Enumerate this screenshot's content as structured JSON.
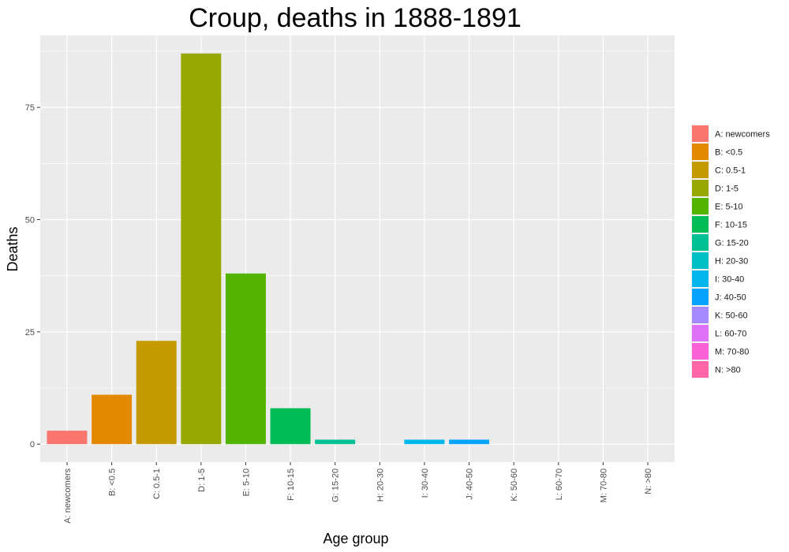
{
  "chart_data": {
    "type": "bar",
    "title": "Croup, deaths in 1888-1891",
    "xlabel": "Age group",
    "ylabel": "Deaths",
    "categories": [
      "A: newcomers",
      "B: <0.5",
      "C: 0.5-1",
      "D: 1-5",
      "E: 5-10",
      "F: 10-15",
      "G: 15-20",
      "H: 20-30",
      "I: 30-40",
      "J: 40-50",
      "K: 50-60",
      "L: 60-70",
      "M: 70-80",
      "N: >80"
    ],
    "values": [
      3,
      11,
      23,
      87,
      38,
      8,
      1,
      0,
      1,
      1,
      0,
      0,
      0,
      0
    ],
    "colors": [
      "#F8766D",
      "#E38900",
      "#C49A00",
      "#99A800",
      "#53B400",
      "#00BC56",
      "#00C094",
      "#00BFC4",
      "#00B6EB",
      "#06A4FF",
      "#A58AFF",
      "#DF70F8",
      "#FB61D7",
      "#FF66A8"
    ],
    "ylim": [
      -4,
      91
    ],
    "yticks": [
      0,
      25,
      50,
      75
    ],
    "grid": true,
    "panel_background": "#EBEBEB",
    "legend_position": "right",
    "legend_entries": [
      "A: newcomers",
      "B: <0.5",
      "C: 0.5-1",
      "D: 1-5",
      "E: 5-10",
      "F: 10-15",
      "G: 15-20",
      "H: 20-30",
      "I: 30-40",
      "J: 40-50",
      "K: 50-60",
      "L: 60-70",
      "M: 70-80",
      "N: >80"
    ]
  }
}
